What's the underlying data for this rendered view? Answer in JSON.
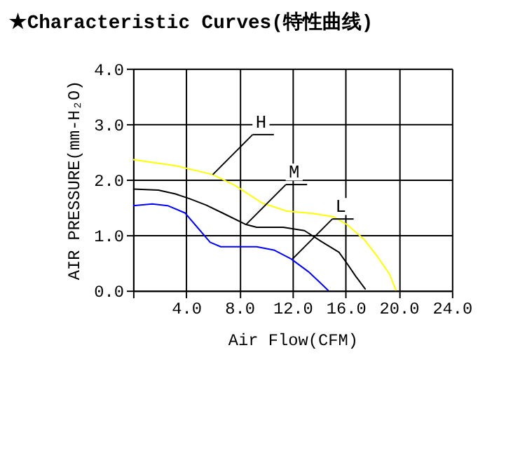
{
  "chart_data": {
    "type": "line",
    "title": "★Characteristic Curves(特性曲线)",
    "xlabel": "Air Flow(CFM)",
    "ylabel": "AIR PRESSURE(mm-H₂O)",
    "xlim": [
      0,
      24
    ],
    "ylim": [
      0,
      4
    ],
    "xticks": [
      {
        "value": 0,
        "label": null
      },
      {
        "value": 4,
        "label": "4.0"
      },
      {
        "value": 8,
        "label": "8.0"
      },
      {
        "value": 12,
        "label": "12.0"
      },
      {
        "value": 16,
        "label": "16.0"
      },
      {
        "value": 20,
        "label": "20.0"
      },
      {
        "value": 24,
        "label": "24.0"
      }
    ],
    "yticks": [
      {
        "value": 0,
        "label": "0.0"
      },
      {
        "value": 1,
        "label": "1.0"
      },
      {
        "value": 2,
        "label": "2.0"
      },
      {
        "value": 3,
        "label": "3.0"
      },
      {
        "value": 4,
        "label": "4.0"
      }
    ],
    "grid": true,
    "marker": "none",
    "line_style": "solid",
    "series": [
      {
        "color": "#ffff00",
        "x": [
          0,
          3.2,
          6.0,
          7.7,
          9.7,
          11.6,
          13.5,
          15.1,
          16.1,
          17.4,
          18.4,
          19.3,
          19.8
        ],
        "values": [
          2.36,
          2.25,
          2.09,
          1.89,
          1.58,
          1.43,
          1.39,
          1.33,
          1.19,
          0.92,
          0.61,
          0.3,
          0
        ]
      },
      {
        "color": "#000000",
        "x": [
          0,
          1.9,
          3.2,
          4.2,
          5.5,
          6.8,
          8.5,
          9.3,
          11.3,
          12.9,
          14.2,
          15.5,
          16.1,
          16.75,
          17.5
        ],
        "values": [
          1.83,
          1.81,
          1.74,
          1.66,
          1.54,
          1.39,
          1.19,
          1.14,
          1.14,
          1.08,
          0.88,
          0.69,
          0.49,
          0.26,
          0.02
        ]
      },
      {
        "color": "#0000ff",
        "x": [
          0,
          1.45,
          2.6,
          3.9,
          4.8,
          5.8,
          6.6,
          9.3,
          10.6,
          11.9,
          13.2,
          14.0,
          14.7
        ],
        "values": [
          1.53,
          1.56,
          1.53,
          1.4,
          1.15,
          0.87,
          0.79,
          0.79,
          0.73,
          0.57,
          0.34,
          0.16,
          0
        ]
      }
    ],
    "annotations": [
      {
        "text": "H",
        "x": 6.0,
        "y": 2.09
      },
      {
        "text": "M",
        "x": 8.5,
        "y": 1.19
      },
      {
        "text": "L",
        "x": 12.0,
        "y": 0.57
      }
    ]
  }
}
